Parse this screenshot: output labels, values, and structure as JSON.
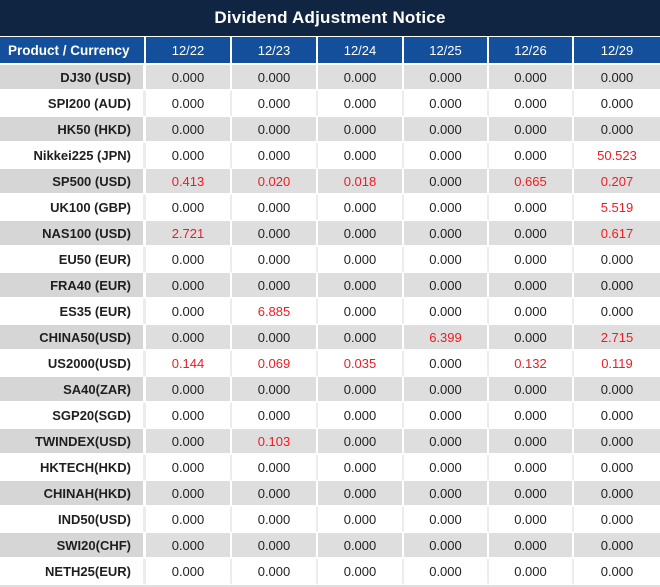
{
  "title": "Dividend Adjustment Notice",
  "table": {
    "header": [
      "Product / Currency",
      "12/22",
      "12/23",
      "12/24",
      "12/25",
      "12/26",
      "12/29"
    ],
    "rows": [
      {
        "product": "DJ30 (USD)",
        "values": [
          "0.000",
          "0.000",
          "0.000",
          "0.000",
          "0.000",
          "0.000"
        ],
        "red": [
          false,
          false,
          false,
          false,
          false,
          false
        ]
      },
      {
        "product": "SPI200 (AUD)",
        "values": [
          "0.000",
          "0.000",
          "0.000",
          "0.000",
          "0.000",
          "0.000"
        ],
        "red": [
          false,
          false,
          false,
          false,
          false,
          false
        ]
      },
      {
        "product": "HK50 (HKD)",
        "values": [
          "0.000",
          "0.000",
          "0.000",
          "0.000",
          "0.000",
          "0.000"
        ],
        "red": [
          false,
          false,
          false,
          false,
          false,
          false
        ]
      },
      {
        "product": "Nikkei225 (JPN)",
        "values": [
          "0.000",
          "0.000",
          "0.000",
          "0.000",
          "0.000",
          "50.523"
        ],
        "red": [
          false,
          false,
          false,
          false,
          false,
          true
        ]
      },
      {
        "product": "SP500 (USD)",
        "values": [
          "0.413",
          "0.020",
          "0.018",
          "0.000",
          "0.665",
          "0.207"
        ],
        "red": [
          true,
          true,
          true,
          false,
          true,
          true
        ]
      },
      {
        "product": "UK100 (GBP)",
        "values": [
          "0.000",
          "0.000",
          "0.000",
          "0.000",
          "0.000",
          "5.519"
        ],
        "red": [
          false,
          false,
          false,
          false,
          false,
          true
        ]
      },
      {
        "product": "NAS100 (USD)",
        "values": [
          "2.721",
          "0.000",
          "0.000",
          "0.000",
          "0.000",
          "0.617"
        ],
        "red": [
          true,
          false,
          false,
          false,
          false,
          true
        ]
      },
      {
        "product": "EU50 (EUR)",
        "values": [
          "0.000",
          "0.000",
          "0.000",
          "0.000",
          "0.000",
          "0.000"
        ],
        "red": [
          false,
          false,
          false,
          false,
          false,
          false
        ]
      },
      {
        "product": "FRA40 (EUR)",
        "values": [
          "0.000",
          "0.000",
          "0.000",
          "0.000",
          "0.000",
          "0.000"
        ],
        "red": [
          false,
          false,
          false,
          false,
          false,
          false
        ]
      },
      {
        "product": "ES35 (EUR)",
        "values": [
          "0.000",
          "6.885",
          "0.000",
          "0.000",
          "0.000",
          "0.000"
        ],
        "red": [
          false,
          true,
          false,
          false,
          false,
          false
        ]
      },
      {
        "product": "CHINA50(USD)",
        "values": [
          "0.000",
          "0.000",
          "0.000",
          "6.399",
          "0.000",
          "2.715"
        ],
        "red": [
          false,
          false,
          false,
          true,
          false,
          true
        ]
      },
      {
        "product": "US2000(USD)",
        "values": [
          "0.144",
          "0.069",
          "0.035",
          "0.000",
          "0.132",
          "0.119"
        ],
        "red": [
          true,
          true,
          true,
          false,
          true,
          true
        ]
      },
      {
        "product": "SA40(ZAR)",
        "values": [
          "0.000",
          "0.000",
          "0.000",
          "0.000",
          "0.000",
          "0.000"
        ],
        "red": [
          false,
          false,
          false,
          false,
          false,
          false
        ]
      },
      {
        "product": "SGP20(SGD)",
        "values": [
          "0.000",
          "0.000",
          "0.000",
          "0.000",
          "0.000",
          "0.000"
        ],
        "red": [
          false,
          false,
          false,
          false,
          false,
          false
        ]
      },
      {
        "product": "TWINDEX(USD)",
        "values": [
          "0.000",
          "0.103",
          "0.000",
          "0.000",
          "0.000",
          "0.000"
        ],
        "red": [
          false,
          true,
          false,
          false,
          false,
          false
        ]
      },
      {
        "product": "HKTECH(HKD)",
        "values": [
          "0.000",
          "0.000",
          "0.000",
          "0.000",
          "0.000",
          "0.000"
        ],
        "red": [
          false,
          false,
          false,
          false,
          false,
          false
        ]
      },
      {
        "product": "CHINAH(HKD)",
        "values": [
          "0.000",
          "0.000",
          "0.000",
          "0.000",
          "0.000",
          "0.000"
        ],
        "red": [
          false,
          false,
          false,
          false,
          false,
          false
        ]
      },
      {
        "product": "IND50(USD)",
        "values": [
          "0.000",
          "0.000",
          "0.000",
          "0.000",
          "0.000",
          "0.000"
        ],
        "red": [
          false,
          false,
          false,
          false,
          false,
          false
        ]
      },
      {
        "product": "SWI20(CHF)",
        "values": [
          "0.000",
          "0.000",
          "0.000",
          "0.000",
          "0.000",
          "0.000"
        ],
        "red": [
          false,
          false,
          false,
          false,
          false,
          false
        ]
      },
      {
        "product": "NETH25(EUR)",
        "values": [
          "0.000",
          "0.000",
          "0.000",
          "0.000",
          "0.000",
          "0.000"
        ],
        "red": [
          false,
          false,
          false,
          false,
          false,
          false
        ]
      }
    ]
  },
  "colors": {
    "title_bg": "#102541",
    "header_bg": "#134f9b",
    "header_text": "#ffffff",
    "row_alt_label_bg": "#d6d6d6",
    "row_alt_bg": "#dedede",
    "row_bg": "#ffffff",
    "value_text": "#1f1f1f",
    "highlight_red": "#ed1c24",
    "sep_on_gray": "#ffffff",
    "sep_on_white": "#ececec"
  }
}
